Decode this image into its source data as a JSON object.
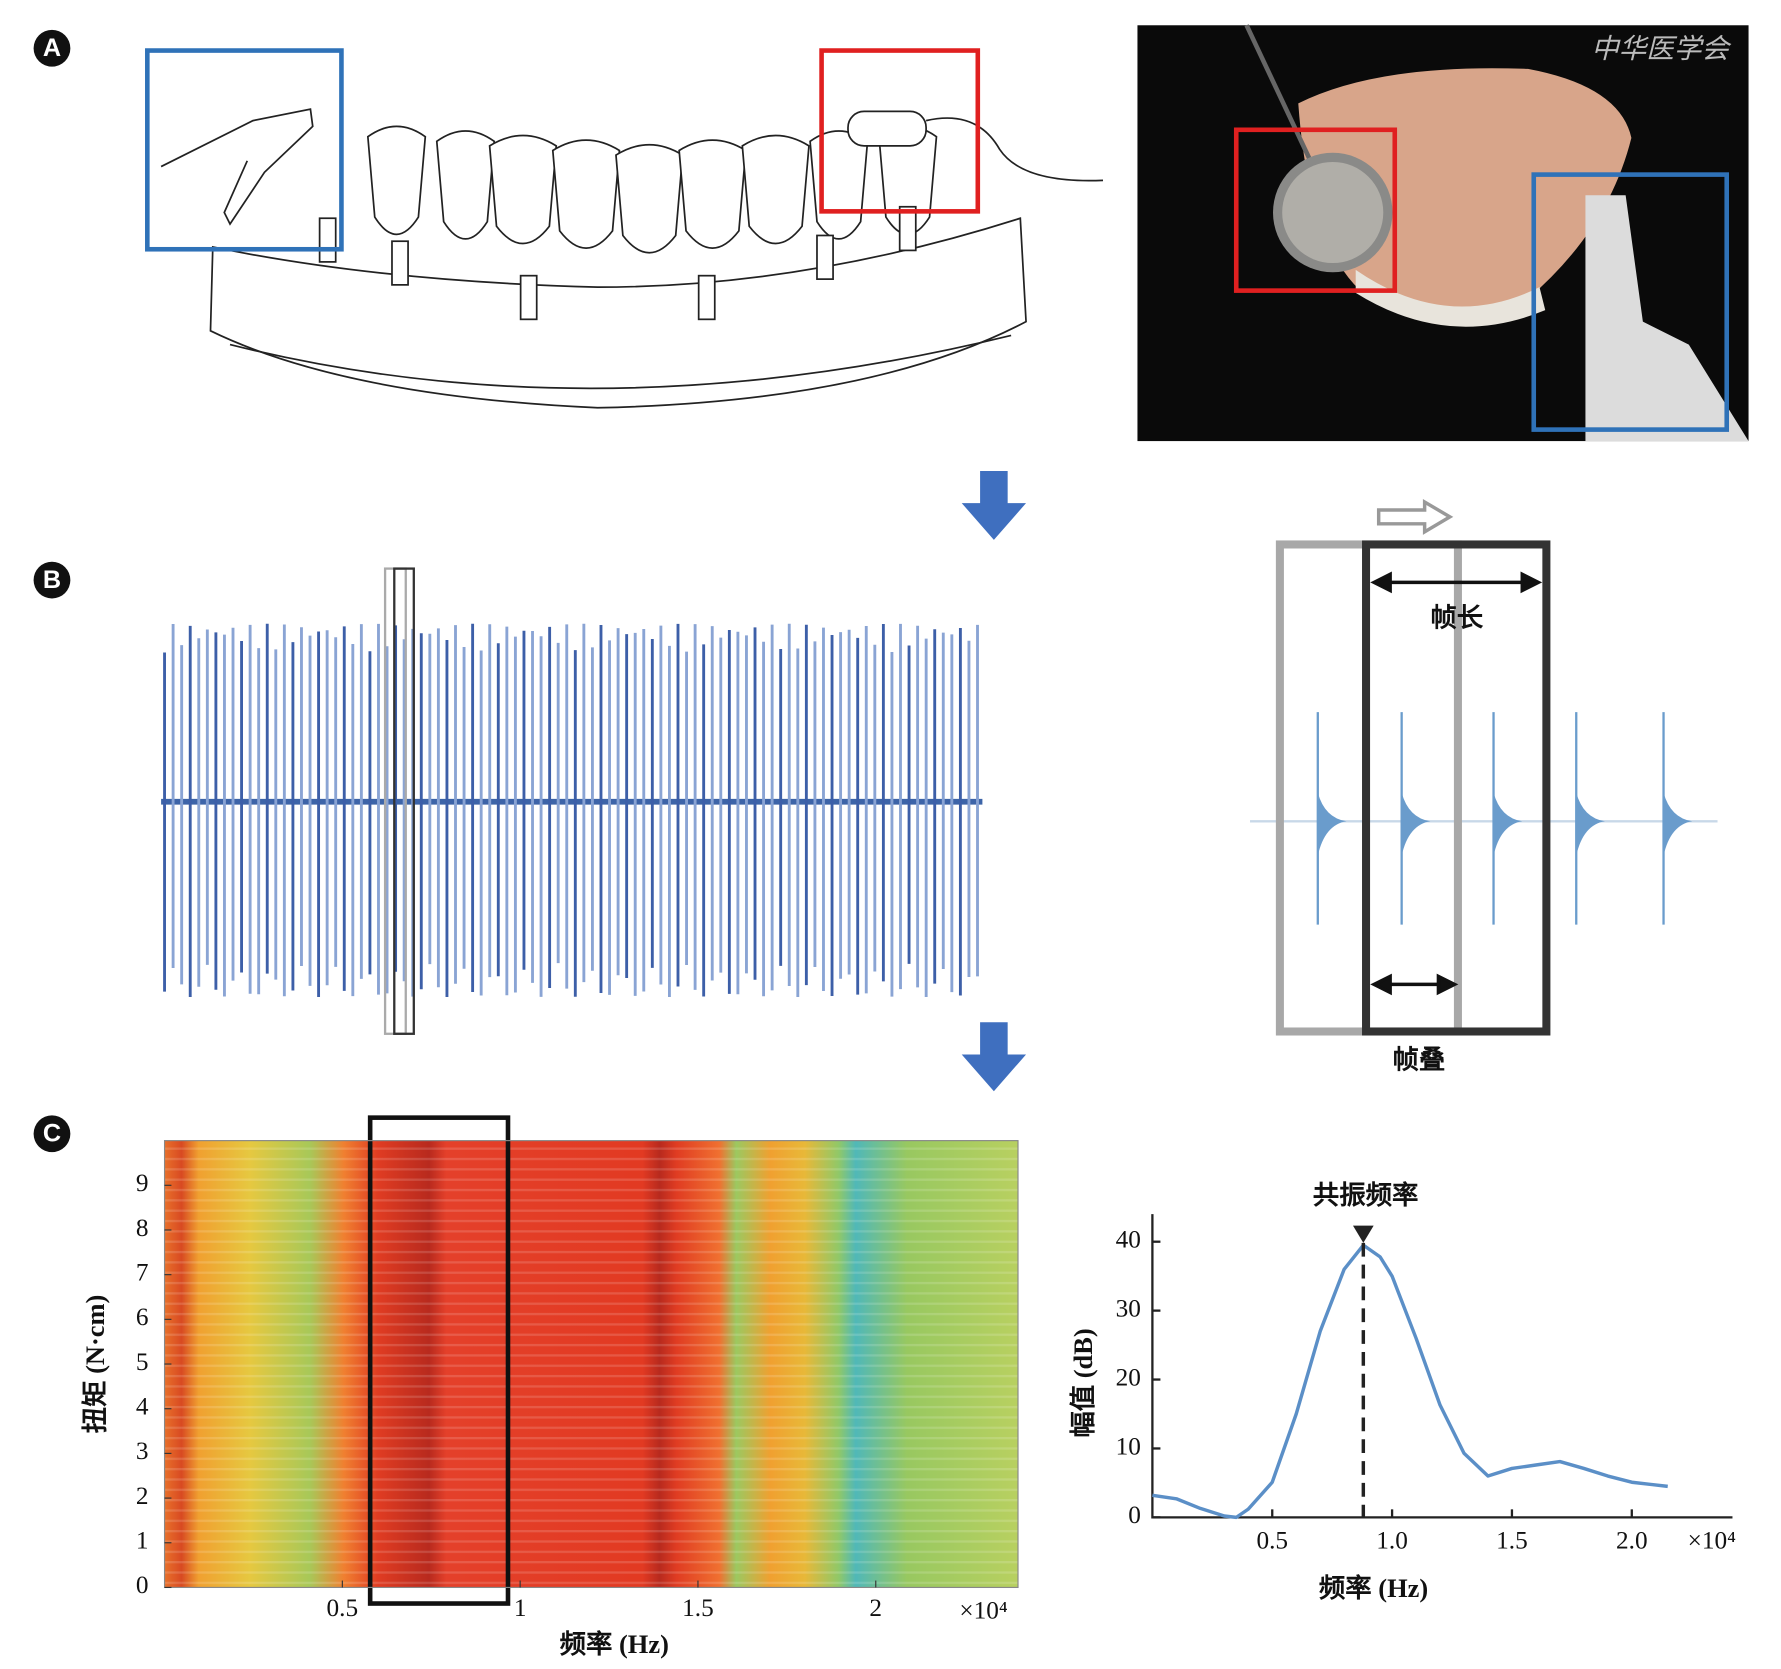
{
  "panel_labels": [
    "A",
    "B",
    "C"
  ],
  "watermark": "中华医学会",
  "framing": {
    "frame_length": "帧长",
    "frame_overlap": "帧叠"
  },
  "chart_data": [
    {
      "type": "heatmap",
      "xlabel": "频率 (Hz)",
      "ylabel": "扭矩 (N·cm)",
      "x_multiplier": "×10⁴",
      "xlim": [
        0,
        2.4
      ],
      "ylim": [
        0,
        10
      ],
      "xticks": [
        0.5,
        1,
        1.5,
        2
      ],
      "yticks": [
        0,
        1,
        2,
        3,
        4,
        5,
        6,
        7,
        8,
        9
      ]
    },
    {
      "type": "line",
      "xlabel": "频率 (Hz)",
      "ylabel": "幅值 (dB)",
      "x_multiplier": "×10⁴",
      "annotation": {
        "text": "共振频率",
        "x": 0.88
      },
      "color": "#5b8fc7",
      "xlim": [
        0,
        2.42
      ],
      "ylim": [
        0,
        44
      ],
      "xticks": [
        0.5,
        {
          "value": 1,
          "label": "1.0"
        },
        1.5,
        {
          "value": 2,
          "label": "2.0"
        }
      ],
      "yticks": [
        0,
        10,
        20,
        30,
        40
      ],
      "x": [
        0,
        0.1,
        0.2,
        0.3,
        0.35,
        0.4,
        0.5,
        0.6,
        0.7,
        0.8,
        0.88,
        0.95,
        1.0,
        1.1,
        1.2,
        1.3,
        1.4,
        1.5,
        1.6,
        1.7,
        1.8,
        1.9,
        2.0,
        2.15
      ],
      "values": [
        3.2,
        2.7,
        1.3,
        0.2,
        0,
        1.2,
        5.1,
        15,
        27,
        36,
        39.5,
        37.8,
        35,
        26,
        16.3,
        9.3,
        6,
        7.1,
        7.6,
        8.1,
        7.1,
        6,
        5.1,
        4.5
      ]
    }
  ]
}
